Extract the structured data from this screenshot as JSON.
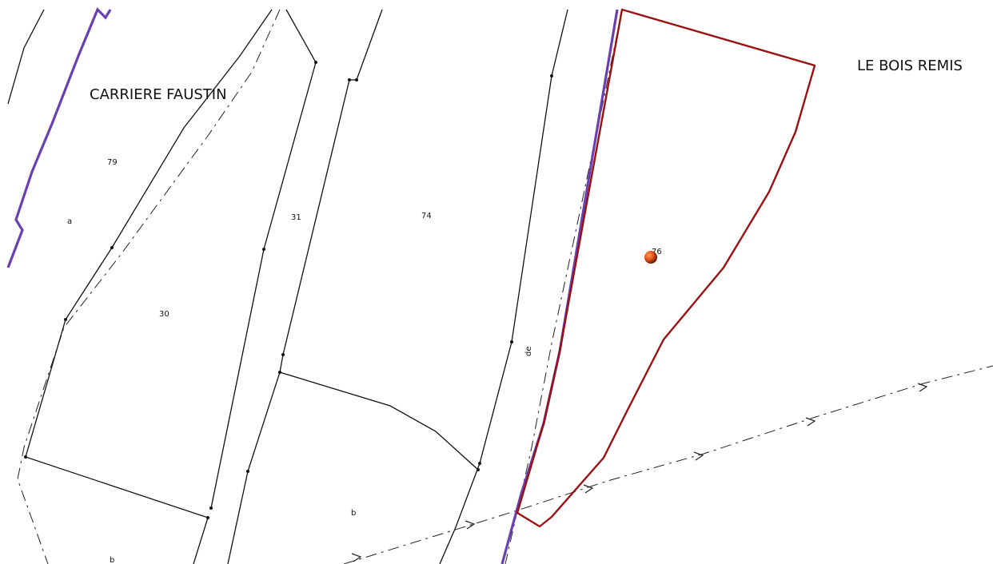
{
  "map": {
    "place_names": {
      "carriere_faustin": "CARRIERE FAUSTIN",
      "le_bois_remis": "LE BOIS REMIS"
    },
    "parcels": {
      "p79": "79",
      "pa": "a",
      "p31": "31",
      "p74": "74",
      "p76": "76",
      "p30": "30",
      "pb_right": "b",
      "pb_left": "b",
      "road": "de"
    },
    "colors": {
      "boundary_violet": "#6a3fb0",
      "selected_parcel": "#9b1111",
      "cadastral_line": "#111111",
      "marker": "#e0531c"
    },
    "icons": {
      "marker": "location-marker-icon",
      "flow_arrow": "arrow-right-icon"
    }
  }
}
